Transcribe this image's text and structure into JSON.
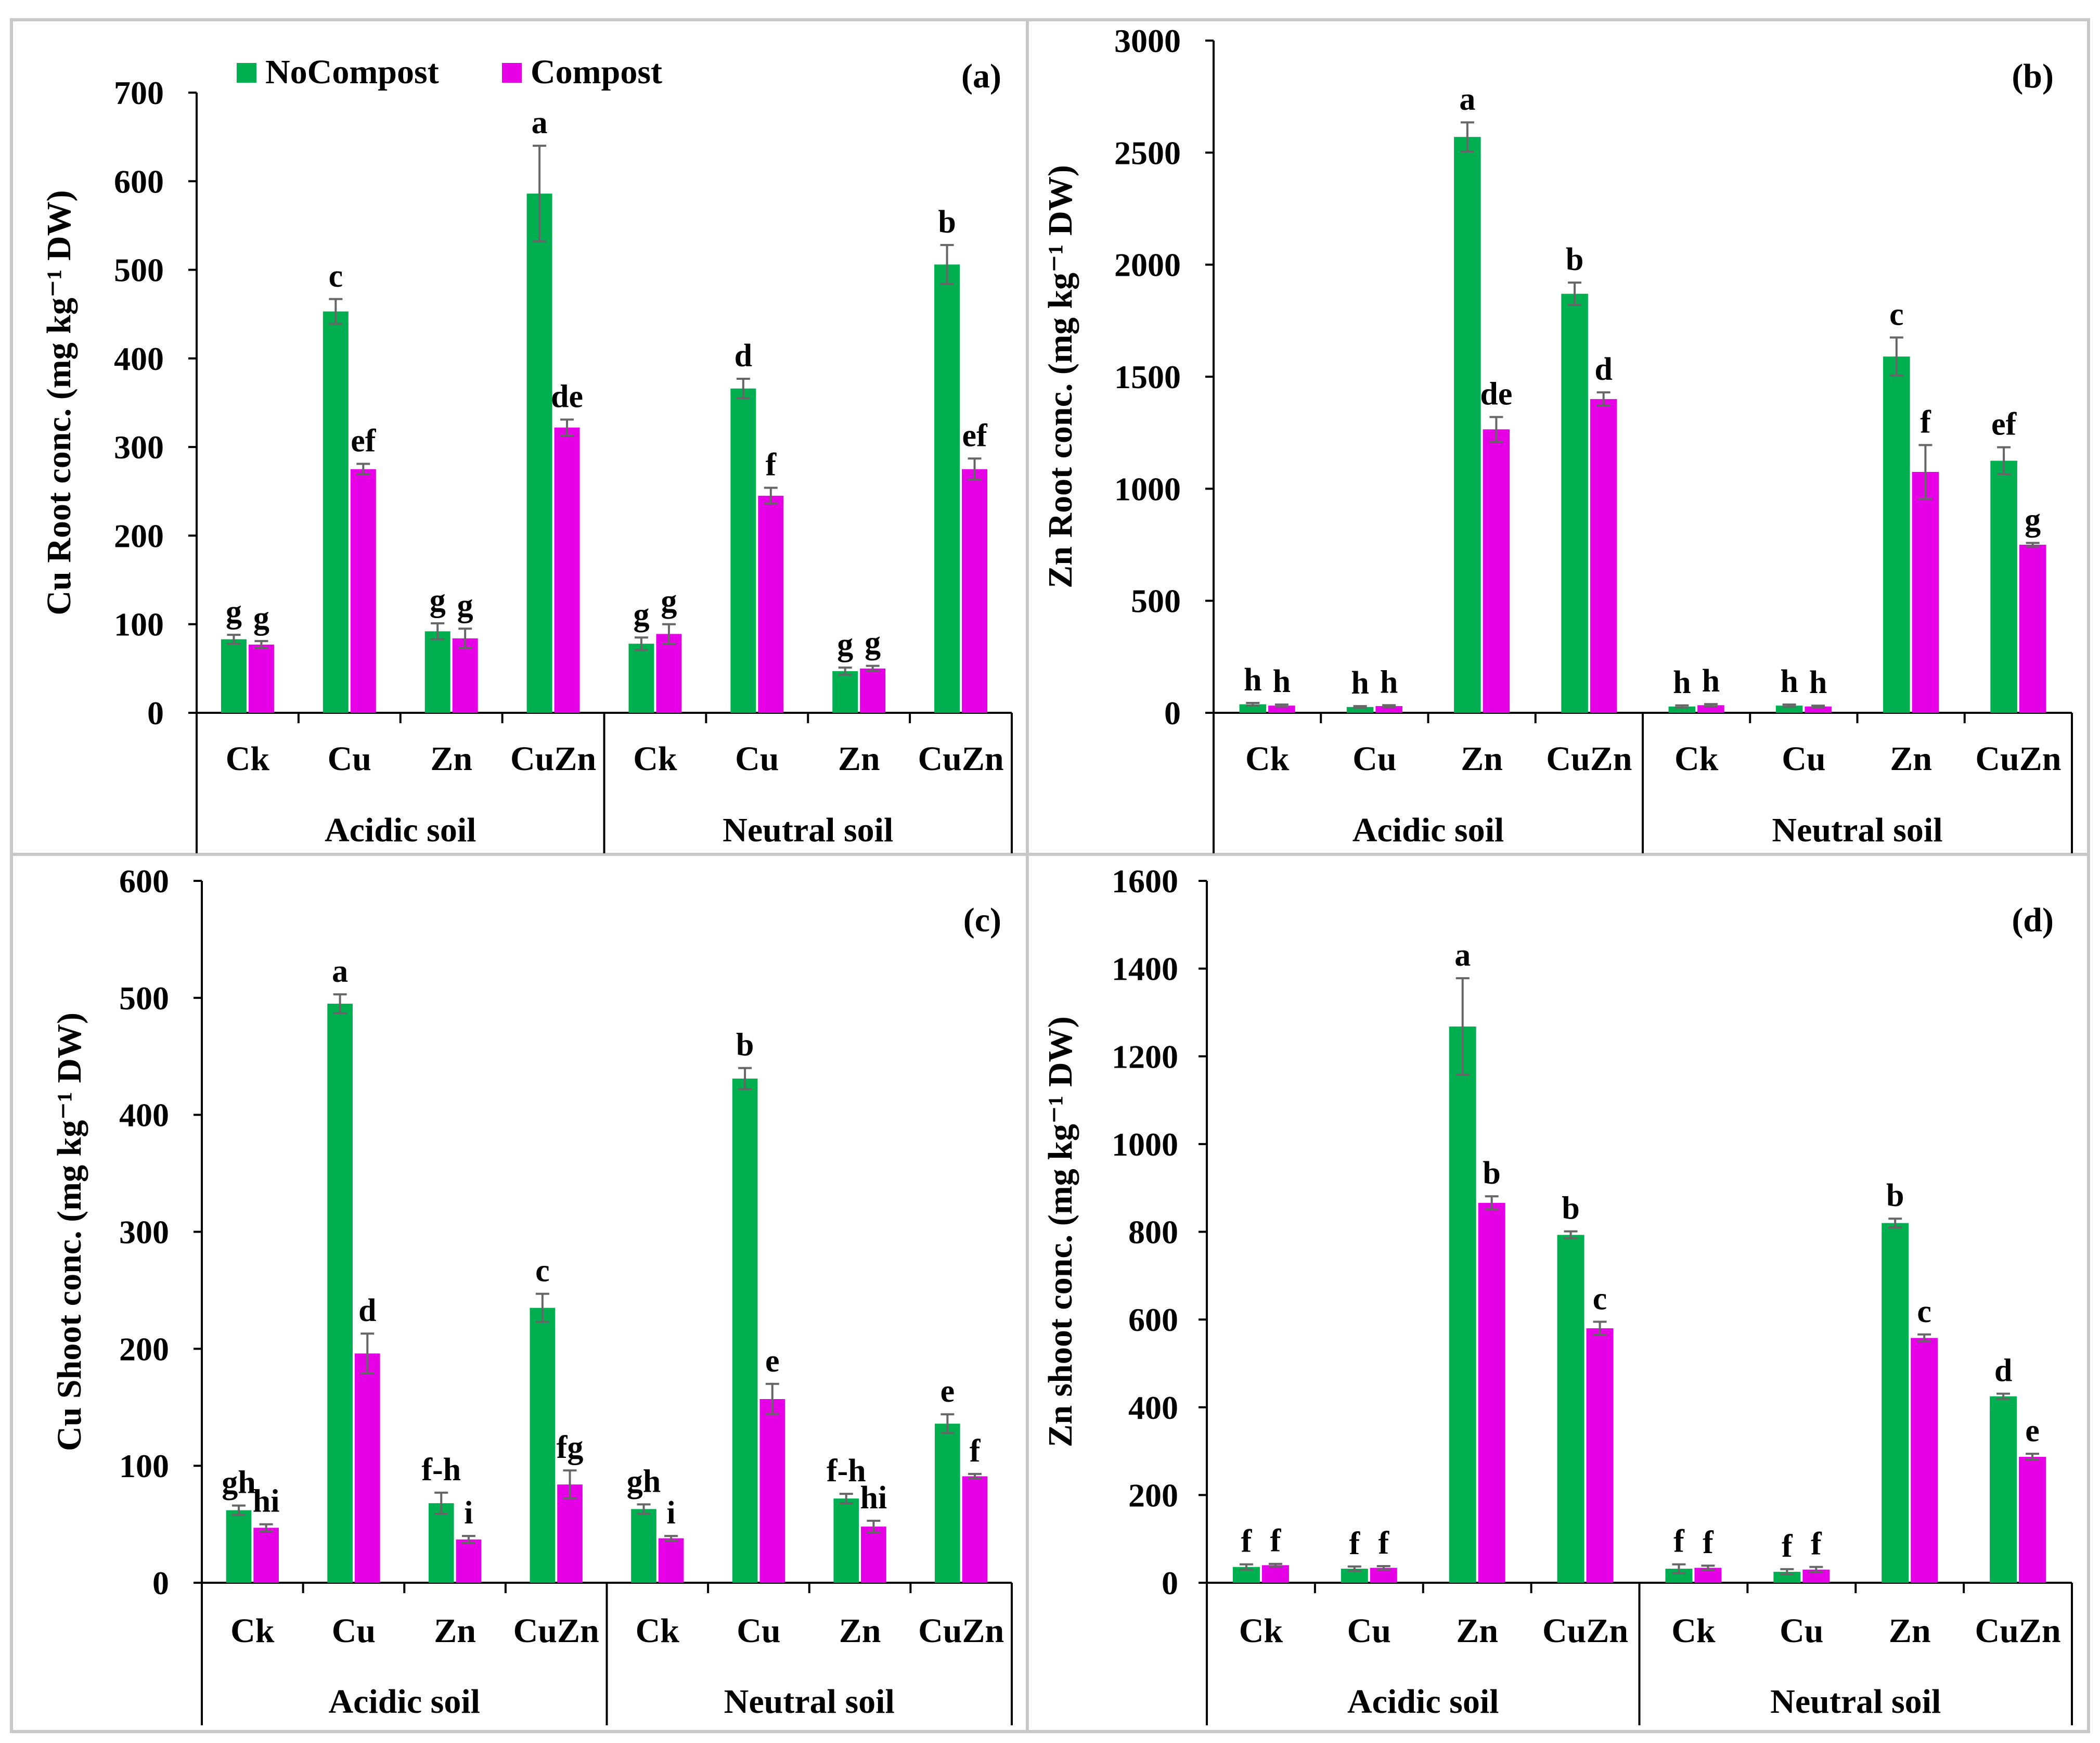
{
  "legend": {
    "entries": [
      {
        "name": "NoCompost",
        "color": "#00b050"
      },
      {
        "name": "Compost",
        "color": "#e600e6"
      }
    ]
  },
  "chart_data": [
    {
      "type": "bar",
      "panel": "(a)",
      "title": "",
      "ylabel": "Cu Root conc. (mg kg⁻¹ DW)",
      "ylim": [
        0,
        700
      ],
      "yticks": [
        0,
        100,
        200,
        300,
        400,
        500,
        600,
        700
      ],
      "groups": [
        "Acidic soil",
        "Neutral soil"
      ],
      "categories": [
        "Ck",
        "Cu",
        "Zn",
        "CuZn",
        "Ck",
        "Cu",
        "Zn",
        "CuZn"
      ],
      "series": [
        {
          "name": "NoCompost",
          "color": "#00b050",
          "values": [
            83,
            453,
            92,
            586,
            78,
            366,
            47,
            506
          ],
          "errors": [
            5,
            14,
            9,
            54,
            7,
            11,
            4,
            22
          ],
          "letters": [
            "g",
            "c",
            "g",
            "a",
            "g",
            "d",
            "g",
            "b"
          ]
        },
        {
          "name": "Compost",
          "color": "#e600e6",
          "values": [
            77,
            275,
            84,
            322,
            89,
            245,
            50,
            275
          ],
          "errors": [
            4,
            6,
            11,
            9,
            11,
            9,
            3,
            12
          ],
          "letters": [
            "g",
            "ef",
            "g",
            "de",
            "g",
            "f",
            "g",
            "ef"
          ]
        }
      ]
    },
    {
      "type": "bar",
      "panel": "(b)",
      "title": "",
      "ylabel": "Zn Root conc. (mg kg⁻¹ DW)",
      "ylim": [
        0,
        3000
      ],
      "yticks": [
        0,
        500,
        1000,
        1500,
        2000,
        2500,
        3000
      ],
      "groups": [
        "Acidic soil",
        "Neutral soil"
      ],
      "categories": [
        "Ck",
        "Cu",
        "Zn",
        "CuZn",
        "Ck",
        "Cu",
        "Zn",
        "CuZn"
      ],
      "series": [
        {
          "name": "NoCompost",
          "color": "#00b050",
          "values": [
            38,
            26,
            2570,
            1870,
            28,
            32,
            1590,
            1125
          ],
          "errors": [
            6,
            4,
            65,
            50,
            5,
            5,
            85,
            60
          ],
          "letters": [
            "h",
            "h",
            "a",
            "b",
            "h",
            "h",
            "c",
            "ef"
          ]
        },
        {
          "name": "Compost",
          "color": "#e600e6",
          "values": [
            32,
            30,
            1265,
            1400,
            34,
            28,
            1075,
            750
          ],
          "errors": [
            5,
            4,
            55,
            30,
            5,
            4,
            120,
            8
          ],
          "letters": [
            "h",
            "h",
            "de",
            "d",
            "h",
            "h",
            "f",
            "g"
          ]
        }
      ]
    },
    {
      "type": "bar",
      "panel": "(c)",
      "title": "",
      "ylabel": "Cu Shoot conc. (mg kg⁻¹ DW)",
      "ylim": [
        0,
        600
      ],
      "yticks": [
        0,
        100,
        200,
        300,
        400,
        500,
        600
      ],
      "groups": [
        "Acidic soil",
        "Neutral soil"
      ],
      "categories": [
        "Ck",
        "Cu",
        "Zn",
        "CuZn",
        "Ck",
        "Cu",
        "Zn",
        "CuZn"
      ],
      "series": [
        {
          "name": "NoCompost",
          "color": "#00b050",
          "values": [
            62,
            495,
            68,
            235,
            63,
            431,
            72,
            136
          ],
          "errors": [
            4,
            8,
            9,
            12,
            4,
            9,
            4,
            8
          ],
          "letters": [
            "gh",
            "a",
            "f-h",
            "c",
            "gh",
            "b",
            "f-h",
            "e"
          ]
        },
        {
          "name": "Compost",
          "color": "#e600e6",
          "values": [
            47,
            196,
            37,
            84,
            38,
            157,
            48,
            91
          ],
          "errors": [
            3,
            17,
            3,
            12,
            2,
            13,
            5,
            2
          ],
          "letters": [
            "hi",
            "d",
            "i",
            "fg",
            "i",
            "e",
            "hi",
            "f"
          ]
        }
      ]
    },
    {
      "type": "bar",
      "panel": "(d)",
      "title": "",
      "ylabel": "Zn shoot conc. (mg kg⁻¹ DW)",
      "ylim": [
        0,
        1600
      ],
      "yticks": [
        0,
        200,
        400,
        600,
        800,
        1000,
        1200,
        1400,
        1600
      ],
      "groups": [
        "Acidic soil",
        "Neutral soil"
      ],
      "categories": [
        "Ck",
        "Cu",
        "Zn",
        "CuZn",
        "Ck",
        "Cu",
        "Zn",
        "CuZn"
      ],
      "series": [
        {
          "name": "NoCompost",
          "color": "#00b050",
          "values": [
            36,
            32,
            1268,
            793,
            32,
            25,
            820,
            425
          ],
          "errors": [
            6,
            5,
            110,
            8,
            10,
            6,
            10,
            6
          ],
          "letters": [
            "f",
            "f",
            "a",
            "b",
            "f",
            "f",
            "b",
            "d"
          ]
        },
        {
          "name": "Compost",
          "color": "#e600e6",
          "values": [
            40,
            34,
            866,
            580,
            34,
            30,
            558,
            287
          ],
          "errors": [
            3,
            4,
            15,
            15,
            5,
            6,
            8,
            7
          ],
          "letters": [
            "f",
            "f",
            "b",
            "c",
            "f",
            "f",
            "c",
            "e"
          ]
        }
      ]
    }
  ]
}
